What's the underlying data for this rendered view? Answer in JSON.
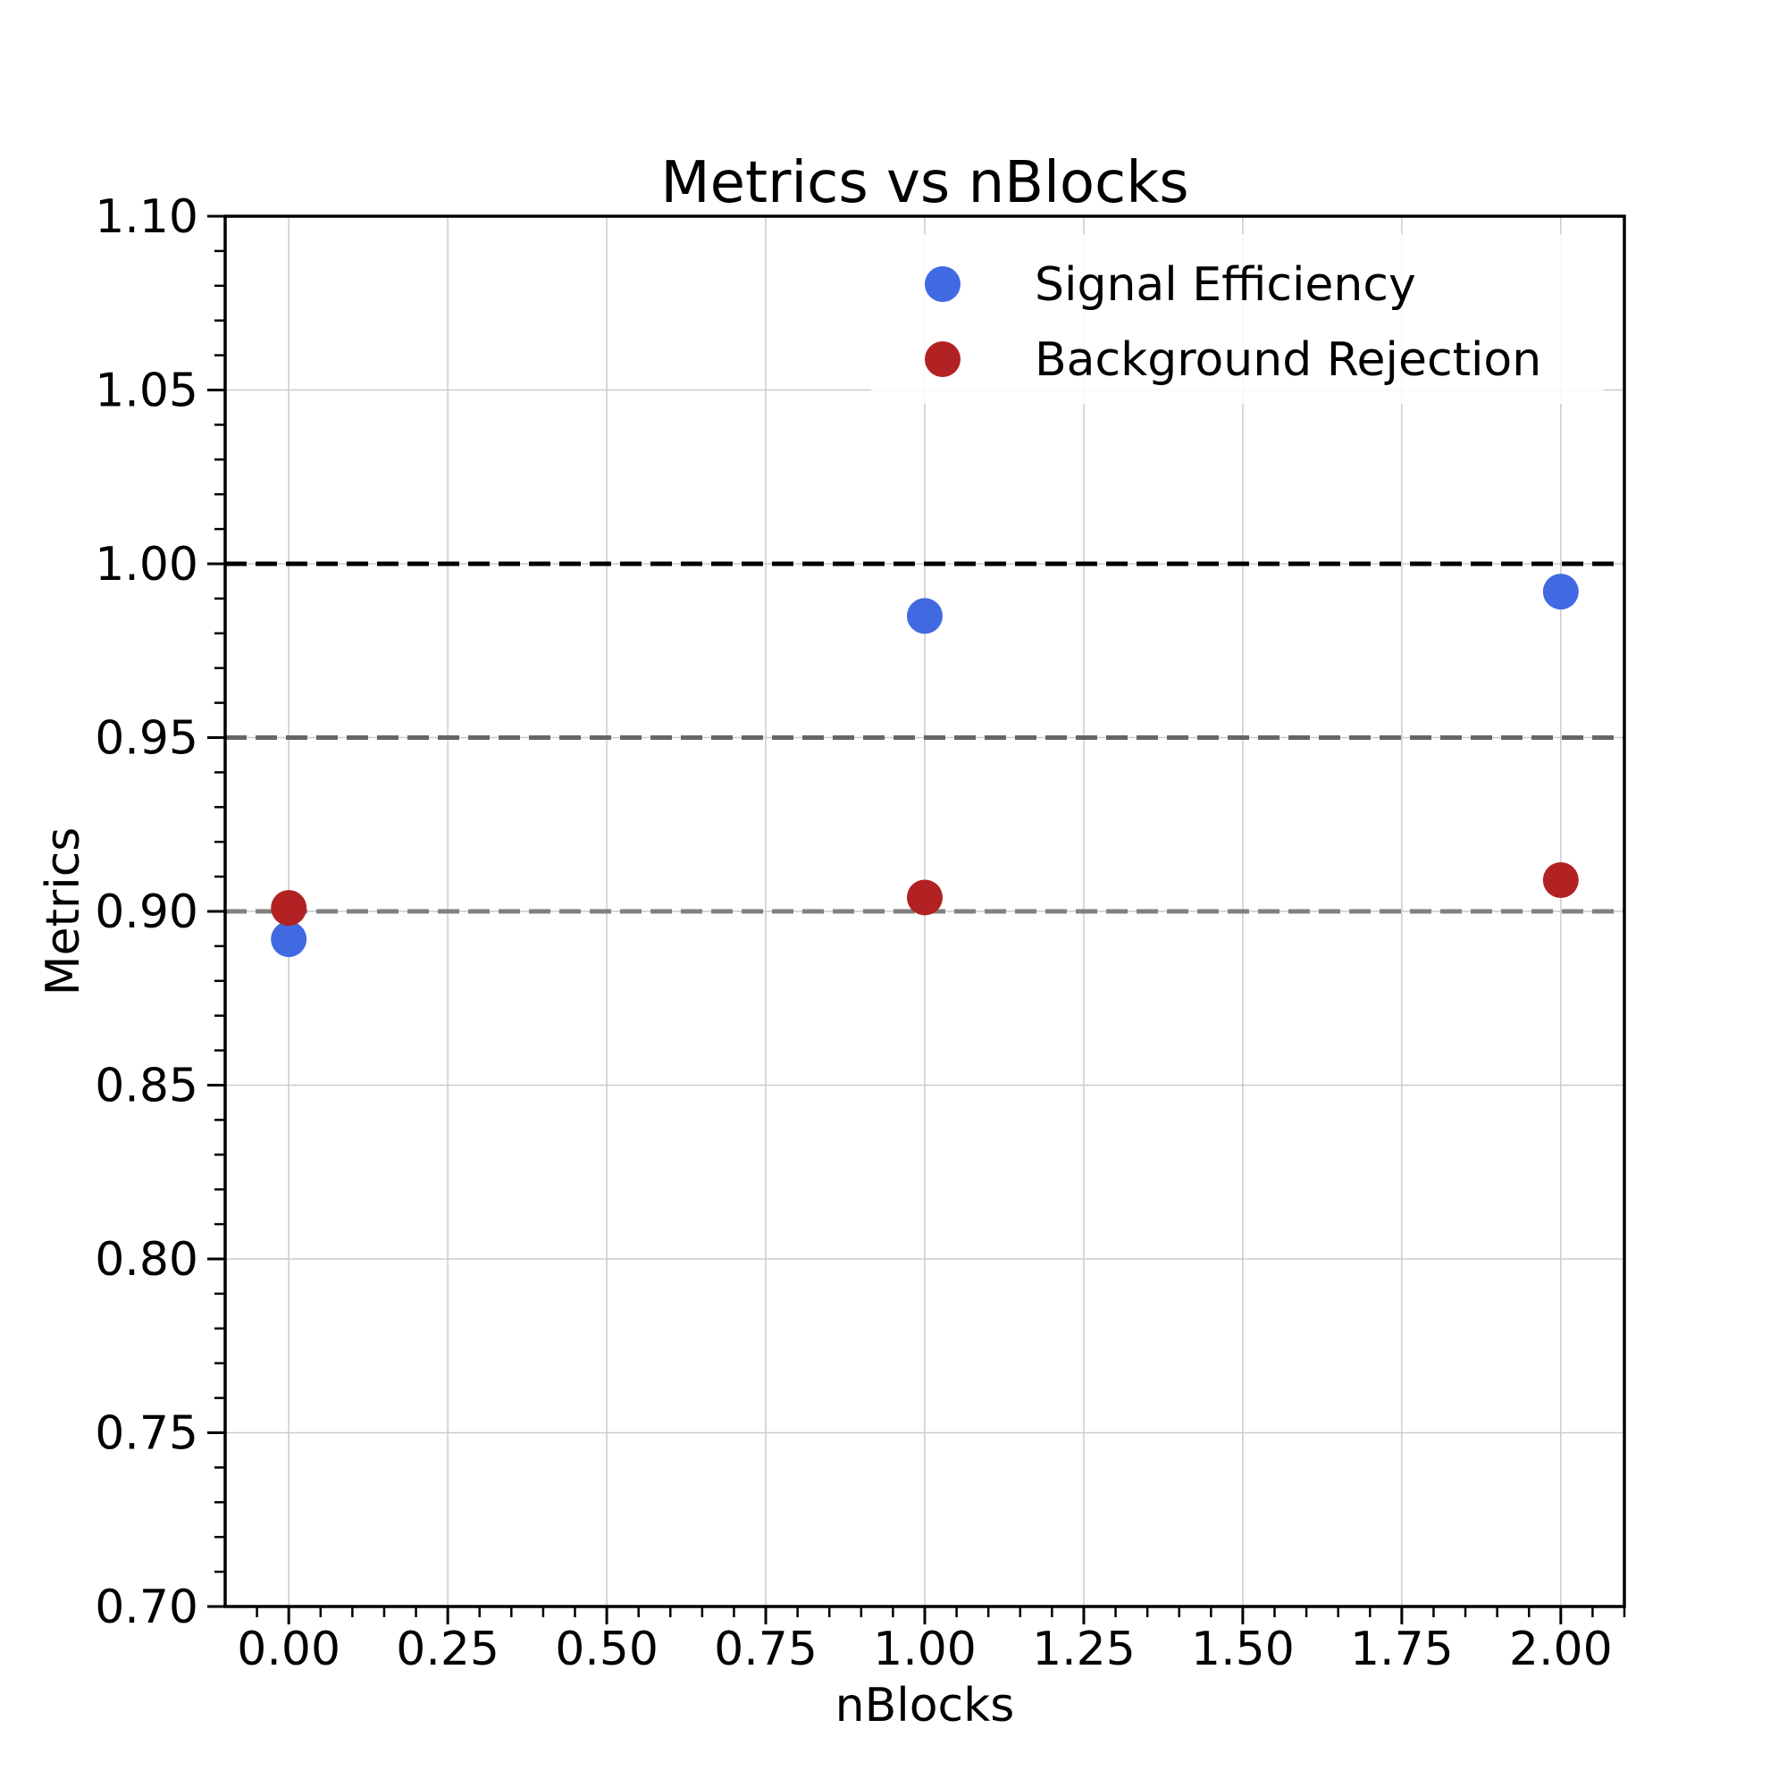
{
  "chart_data": {
    "type": "scatter",
    "title": "Metrics vs nBlocks",
    "xlabel": "nBlocks",
    "ylabel": "Metrics",
    "xlim": [
      -0.1,
      2.1
    ],
    "ylim": [
      0.7,
      1.1
    ],
    "grid": true,
    "legend_position": "top-right",
    "x_ticks": [
      "0.00",
      "0.25",
      "0.50",
      "0.75",
      "1.00",
      "1.25",
      "1.50",
      "1.75",
      "2.00"
    ],
    "y_ticks": [
      "0.70",
      "0.75",
      "0.80",
      "0.85",
      "0.90",
      "0.95",
      "1.00",
      "1.05",
      "1.10"
    ],
    "x": [
      0,
      1,
      2
    ],
    "series": [
      {
        "name": "Signal Efficiency",
        "color": "#4169e1",
        "values": [
          0.892,
          0.985,
          0.992
        ]
      },
      {
        "name": "Background Rejection",
        "color": "#b22222",
        "values": [
          0.901,
          0.904,
          0.909
        ]
      }
    ],
    "reference_lines": [
      {
        "y": 1.0,
        "color": "#000000"
      },
      {
        "y": 0.95,
        "color": "#666666"
      },
      {
        "y": 0.9,
        "color": "#808080"
      }
    ]
  }
}
